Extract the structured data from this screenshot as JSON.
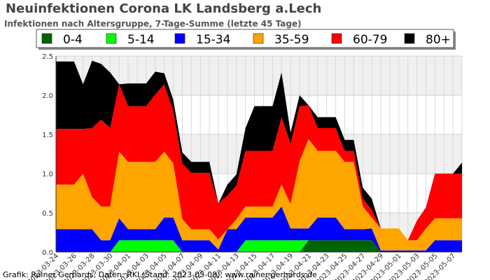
{
  "title": "Neuinfektionen Corona LK Landsberg a.Lech",
  "subtitle": "Infektionen nach Altersgruppe, 7-Tage-Summe (letzte 45 Tage)",
  "footer": "Grafik: Rainer Gerhards, Daten: RKI (Stand: 2023-05-08), www.rainer-gerhards.de",
  "chart_data": {
    "type": "area",
    "stacked": true,
    "title": "Neuinfektionen Corona LK Landsberg a.Lech",
    "subtitle": "Infektionen nach Altersgruppe, 7-Tage-Summe (letzte 45 Tage)",
    "xlabel": "",
    "ylabel": "",
    "ylim": [
      0,
      2.5
    ],
    "yticks": [
      "0.0",
      "0.5",
      "1.0",
      "1.5",
      "2.0",
      "2.5"
    ],
    "legend_position": "top",
    "grid": true,
    "x": [
      "2023-03-24",
      "2023-03-25",
      "2023-03-26",
      "2023-03-27",
      "2023-03-28",
      "2023-03-29",
      "2023-03-30",
      "2023-03-31",
      "2023-04-01",
      "2023-04-02",
      "2023-04-03",
      "2023-04-04",
      "2023-04-05",
      "2023-04-06",
      "2023-04-07",
      "2023-04-08",
      "2023-04-09",
      "2023-04-10",
      "2023-04-11",
      "2023-04-12",
      "2023-04-13",
      "2023-04-14",
      "2023-04-15",
      "2023-04-16",
      "2023-04-17",
      "2023-04-18",
      "2023-04-19",
      "2023-04-20",
      "2023-04-21",
      "2023-04-22",
      "2023-04-23",
      "2023-04-24",
      "2023-04-25",
      "2023-04-26",
      "2023-04-27",
      "2023-04-28",
      "2023-04-29",
      "2023-04-30",
      "2023-05-01",
      "2023-05-02",
      "2023-05-03",
      "2023-05-04",
      "2023-05-05",
      "2023-05-06",
      "2023-05-07",
      "2023-05-08"
    ],
    "xtick_labels": [
      "2023-03-24",
      "2023-03-26",
      "2023-03-28",
      "2023-03-30",
      "2023-04-01",
      "2023-04-03",
      "2023-04-05",
      "2023-04-07",
      "2023-04-09",
      "2023-04-11",
      "2023-04-13",
      "2023-04-15",
      "2023-04-17",
      "2023-04-19",
      "2023-04-21",
      "2023-04-23",
      "2023-04-25",
      "2023-04-27",
      "2023-04-29",
      "2023-05-01",
      "2023-05-03",
      "2023-05-05",
      "2023-05-07"
    ],
    "series": [
      {
        "name": "0-4",
        "color": "#006400",
        "values": [
          0,
          0,
          0,
          0,
          0,
          0,
          0,
          0,
          0,
          0,
          0,
          0,
          0,
          0,
          0,
          0,
          0,
          0,
          0,
          0,
          0,
          0,
          0,
          0,
          0,
          0,
          0,
          0,
          0.15,
          0.15,
          0.15,
          0.15,
          0.15,
          0.15,
          0.15,
          0.15,
          0,
          0,
          0,
          0,
          0,
          0,
          0,
          0,
          0,
          0
        ]
      },
      {
        "name": "5-14",
        "color": "#00ff00",
        "values": [
          0,
          0,
          0,
          0,
          0,
          0,
          0,
          0.15,
          0.15,
          0.15,
          0.15,
          0.15,
          0.15,
          0.15,
          0,
          0,
          0,
          0,
          0,
          0,
          0,
          0.15,
          0.15,
          0.15,
          0.15,
          0.15,
          0.15,
          0.15,
          0,
          0,
          0,
          0,
          0,
          0,
          0,
          0,
          0,
          0,
          0,
          0,
          0,
          0,
          0,
          0,
          0,
          0
        ]
      },
      {
        "name": "15-34",
        "color": "#0000ff",
        "values": [
          0.29,
          0.29,
          0.29,
          0.29,
          0.29,
          0.15,
          0.15,
          0.28,
          0.14,
          0.14,
          0.14,
          0.14,
          0.29,
          0.29,
          0.15,
          0.15,
          0.15,
          0.15,
          0.03,
          0.29,
          0.29,
          0.29,
          0.29,
          0.29,
          0.29,
          0.43,
          0.15,
          0.15,
          0.15,
          0.29,
          0.29,
          0.29,
          0.14,
          0.14,
          0.14,
          0.15,
          0.02,
          0.02,
          0.02,
          0.02,
          0.02,
          0.02,
          0.15,
          0.15,
          0.15,
          0.15
        ]
      },
      {
        "name": "35-59",
        "color": "#ffa500",
        "values": [
          0.57,
          0.57,
          0.57,
          0.71,
          0.41,
          0.43,
          0.43,
          0.85,
          0.86,
          0.86,
          0.86,
          0.86,
          0.84,
          0.69,
          0.27,
          0.14,
          0.14,
          0.14,
          0.13,
          0.0,
          0.13,
          0.14,
          0.14,
          0.14,
          0.14,
          0.28,
          0.31,
          0.86,
          1.14,
          0.85,
          0.85,
          0.85,
          0.86,
          0.86,
          0.29,
          0.14,
          0.28,
          0.28,
          0.28,
          0.13,
          0.13,
          0.28,
          0.28,
          0.28,
          0.28,
          0.28
        ]
      },
      {
        "name": "60-79",
        "color": "#ff0000",
        "values": [
          0.71,
          0.71,
          0.71,
          0.57,
          0.88,
          1.11,
          1.0,
          0.86,
          0.71,
          0.71,
          0.71,
          0.86,
          0.86,
          0.67,
          0.71,
          0.72,
          0.72,
          0.72,
          0.46,
          0.43,
          0.43,
          0.71,
          0.71,
          0.71,
          0.71,
          0.86,
          0.77,
          0.7,
          0.43,
          0.29,
          0.29,
          0.29,
          0.14,
          0.14,
          0.1,
          0.1,
          0,
          0,
          0,
          0,
          0.25,
          0.27,
          0.57,
          0.57,
          0.57,
          0.57
        ]
      },
      {
        "name": "80+",
        "color": "#000000",
        "values": [
          0.86,
          0.86,
          0.86,
          0.57,
          0.86,
          0.71,
          0.71,
          0,
          0.29,
          0.29,
          0.29,
          0.29,
          0.14,
          0.14,
          0.14,
          0.14,
          0.14,
          0.14,
          0,
          0.14,
          0.14,
          0.29,
          0.57,
          0.57,
          0.57,
          0.57,
          0.14,
          0.14,
          0,
          0.14,
          0.14,
          0.14,
          0.14,
          0.14,
          0.14,
          0.14,
          0,
          0,
          0,
          0,
          0,
          0,
          0,
          0,
          0,
          0.14
        ]
      }
    ]
  }
}
